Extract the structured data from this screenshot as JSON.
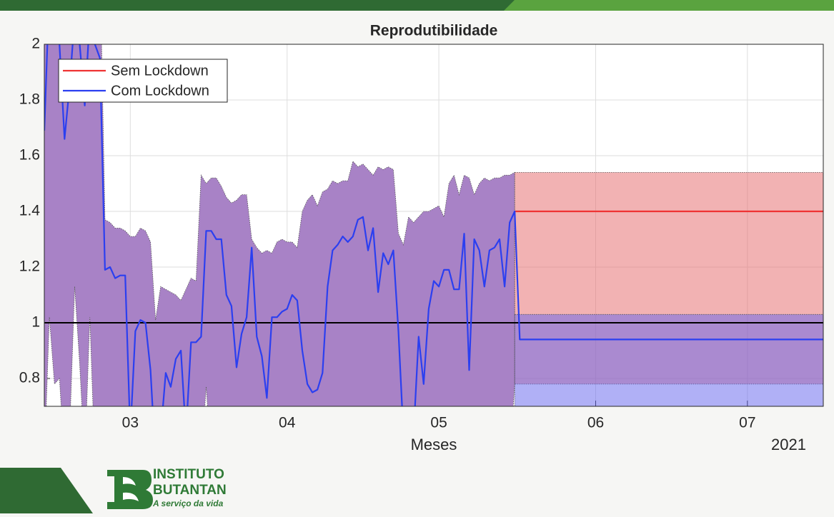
{
  "chart_data": {
    "type": "line",
    "title": "Reprodutibilidade",
    "x_label": "Meses",
    "x_year_label": "2021",
    "xlim": [
      43,
      197
    ],
    "ylim": [
      0.7,
      2
    ],
    "xticks": [
      {
        "value": 60,
        "label": "03"
      },
      {
        "value": 91,
        "label": "04"
      },
      {
        "value": 121,
        "label": "05"
      },
      {
        "value": 152,
        "label": "06"
      },
      {
        "value": 182,
        "label": "07"
      }
    ],
    "yticks": [
      0.8,
      1,
      1.2,
      1.4,
      1.6,
      1.8,
      2
    ],
    "grid": true,
    "legend": "upper left",
    "hline": 1,
    "hline_color": "#000000",
    "bands": [
      {
        "color": "#a882c6",
        "opacity": 1,
        "x": [
          43,
          44,
          45,
          46,
          47,
          48,
          49,
          50,
          51,
          52,
          53,
          54,
          55,
          56,
          57,
          58,
          59,
          60,
          61,
          62,
          63,
          64,
          65,
          66,
          67,
          68,
          69,
          70,
          71,
          72,
          73,
          74,
          75,
          76,
          77,
          78,
          79,
          80,
          81,
          82,
          83,
          84,
          85,
          86,
          87,
          88,
          89,
          90,
          91,
          92,
          93,
          94,
          95,
          96,
          97,
          98,
          99,
          100,
          101,
          102,
          103,
          104,
          105,
          106,
          107,
          108,
          109,
          110,
          111,
          112,
          113,
          114,
          115,
          116,
          117,
          118,
          119,
          120,
          121,
          122,
          123,
          124,
          125,
          126,
          127,
          128,
          129,
          130,
          131,
          132,
          133,
          134,
          135,
          136
        ],
        "upper": [
          2.3,
          2.3,
          2.3,
          2.3,
          2.3,
          2.3,
          2.3,
          2.3,
          2.3,
          2.3,
          2.3,
          2.3,
          1.37,
          1.36,
          1.34,
          1.34,
          1.33,
          1.31,
          1.31,
          1.34,
          1.33,
          1.29,
          1.01,
          1.13,
          1.12,
          1.11,
          1.1,
          1.08,
          1.12,
          1.16,
          1.15,
          1.53,
          1.5,
          1.52,
          1.52,
          1.49,
          1.45,
          1.43,
          1.44,
          1.46,
          1.46,
          1.3,
          1.27,
          1.25,
          1.26,
          1.25,
          1.29,
          1.3,
          1.29,
          1.29,
          1.27,
          1.4,
          1.44,
          1.46,
          1.42,
          1.47,
          1.48,
          1.51,
          1.5,
          1.51,
          1.51,
          1.58,
          1.56,
          1.57,
          1.55,
          1.53,
          1.56,
          1.55,
          1.56,
          1.55,
          1.32,
          1.28,
          1.38,
          1.36,
          1.38,
          1.4,
          1.4,
          1.41,
          1.42,
          1.38,
          1.5,
          1.53,
          1.46,
          1.53,
          1.52,
          1.46,
          1.5,
          1.52,
          1.51,
          1.52,
          1.52,
          1.53,
          1.53,
          1.54
        ],
        "lower": [
          0.5,
          1.02,
          0.78,
          0.8,
          0.5,
          0.6,
          1.13,
          0.85,
          0.5,
          1.02,
          0.5,
          0.5,
          0.5,
          0.5,
          0.5,
          0.5,
          0.5,
          0.5,
          0.5,
          0.5,
          0.5,
          0.5,
          0.5,
          0.5,
          0.5,
          0.5,
          0.5,
          0.5,
          0.5,
          0.5,
          0.5,
          0.5,
          0.77,
          0.5,
          0.5,
          0.5,
          0.5,
          0.5,
          0.5,
          0.5,
          0.5,
          0.5,
          0.5,
          0.5,
          0.5,
          0.5,
          0.5,
          0.5,
          0.5,
          0.5,
          0.5,
          0.5,
          0.5,
          0.5,
          0.5,
          0.5,
          0.5,
          0.5,
          0.5,
          0.5,
          0.5,
          0.5,
          0.5,
          0.5,
          0.5,
          0.5,
          0.5,
          0.5,
          0.5,
          0.5,
          0.5,
          0.5,
          0.5,
          0.5,
          0.5,
          0.5,
          0.5,
          0.5,
          0.5,
          0.5,
          0.5,
          0.5,
          0.5,
          0.5,
          0.5,
          0.5,
          0.5,
          0.5,
          0.5,
          0.5,
          0.5,
          0.5,
          0.5,
          0.78
        ]
      },
      {
        "color": "#e56567",
        "opacity": 0.5,
        "x": [
          136,
          197
        ],
        "upper": [
          1.54,
          1.54
        ],
        "lower": [
          0.78,
          0.78
        ]
      },
      {
        "color": "#6161ed",
        "opacity": 0.5,
        "x": [
          136,
          197
        ],
        "upper": [
          1.03,
          1.03
        ],
        "lower": [
          0.5,
          0.5
        ]
      }
    ],
    "series": [
      {
        "name": "Sem Lockdown",
        "color": "#ee3333",
        "x": [
          136,
          197
        ],
        "values": [
          1.4,
          1.4
        ]
      },
      {
        "name": "Com Lockdown",
        "color": "#2b3ff0",
        "x": [
          43,
          44,
          45,
          46,
          47,
          48,
          49,
          50,
          51,
          52,
          53,
          54,
          55,
          56,
          57,
          58,
          59,
          60,
          61,
          62,
          63,
          64,
          65,
          66,
          67,
          68,
          69,
          70,
          71,
          72,
          73,
          74,
          75,
          76,
          77,
          78,
          79,
          80,
          81,
          82,
          83,
          84,
          85,
          86,
          87,
          88,
          89,
          90,
          91,
          92,
          93,
          94,
          95,
          96,
          97,
          98,
          99,
          100,
          101,
          102,
          103,
          104,
          105,
          106,
          107,
          108,
          109,
          110,
          111,
          112,
          113,
          114,
          115,
          116,
          117,
          118,
          119,
          120,
          121,
          122,
          123,
          124,
          125,
          126,
          127,
          128,
          129,
          130,
          131,
          132,
          133,
          134,
          135,
          136,
          137,
          197
        ],
        "values": [
          1.69,
          2.2,
          2.1,
          2.0,
          1.66,
          1.85,
          2.1,
          2.0,
          1.78,
          2.1,
          2.0,
          1.95,
          1.19,
          1.2,
          1.16,
          1.17,
          1.17,
          0.6,
          0.97,
          1.01,
          1.0,
          0.83,
          0.5,
          0.6,
          0.82,
          0.77,
          0.87,
          0.9,
          0.6,
          0.93,
          0.93,
          0.95,
          1.33,
          1.33,
          1.3,
          1.3,
          1.1,
          1.06,
          0.84,
          0.96,
          1.02,
          1.27,
          0.95,
          0.88,
          0.73,
          1.02,
          1.02,
          1.04,
          1.05,
          1.1,
          1.08,
          0.9,
          0.78,
          0.75,
          0.76,
          0.82,
          1.13,
          1.26,
          1.28,
          1.31,
          1.29,
          1.31,
          1.37,
          1.38,
          1.26,
          1.34,
          1.11,
          1.25,
          1.21,
          1.26,
          0.97,
          0.6,
          0.6,
          0.6,
          0.95,
          0.78,
          1.05,
          1.15,
          1.13,
          1.19,
          1.19,
          1.12,
          1.12,
          1.32,
          0.83,
          1.3,
          1.26,
          1.13,
          1.26,
          1.27,
          1.3,
          1.13,
          1.36,
          1.4,
          0.94,
          0.94
        ]
      }
    ]
  },
  "logo": {
    "line1": "INSTITUTO",
    "line2": "BUTANTAN",
    "tagline": "A serviço da vida"
  }
}
